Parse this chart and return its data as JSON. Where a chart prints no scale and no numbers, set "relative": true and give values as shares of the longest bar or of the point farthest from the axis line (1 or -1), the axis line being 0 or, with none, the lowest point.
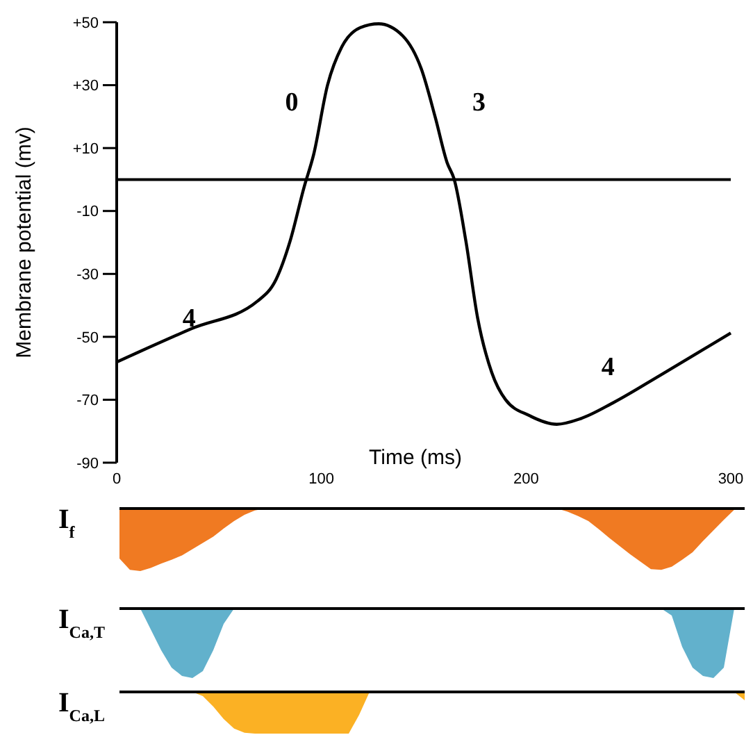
{
  "chart_data": [
    {
      "type": "line",
      "xlabel": "Time (ms)",
      "ylabel": "Membrane potential (mv)",
      "xlim": [
        0,
        300
      ],
      "xticks": [
        0,
        100,
        200,
        300
      ],
      "ylim": [
        -90,
        50
      ],
      "yticks": [
        {
          "value": 50,
          "label": "+50"
        },
        {
          "value": 30,
          "label": "+30"
        },
        {
          "value": 10,
          "label": "+10"
        },
        -10,
        -30,
        -50,
        -70,
        -90
      ],
      "series": [
        {
          "color": "#000000",
          "x": [
            0,
            36.6,
            68.7,
            77.9,
            84.7,
            91.6,
            96.2,
            103,
            110,
            119,
            128,
            139.7,
            148.8,
            155.7,
            161.4,
            164.9,
            170.6,
            176.3,
            183.2,
            190,
            201.5,
            215,
            226.7,
            242.7,
            265.6,
            300
          ],
          "values": [
            -58,
            -47.4,
            -38.7,
            -31.7,
            -19.6,
            -2.3,
            7.9,
            30,
            42.2,
            48.3,
            49.5,
            45.7,
            35.2,
            19.6,
            5.4,
            0,
            -19.6,
            -43.9,
            -61.3,
            -70,
            -75,
            -77.8,
            -76,
            -70.9,
            -62.2,
            -48.8
          ]
        }
      ],
      "ref_lines": [
        {
          "axis": "y",
          "value": 0,
          "color": "#000000"
        }
      ],
      "annotations": [
        "0",
        "3",
        "4",
        "4"
      ]
    },
    {
      "type": "area",
      "title": "I$_{f}$",
      "relative": true,
      "categories": [
        null,
        null,
        null,
        null,
        null,
        null,
        null,
        null,
        null,
        null,
        null,
        null,
        null,
        null,
        null,
        null,
        null,
        null,
        null,
        null,
        null,
        null,
        null,
        null,
        null,
        null,
        null,
        null,
        null,
        null,
        null,
        null,
        null,
        null,
        null,
        null,
        null,
        null,
        null,
        null,
        null,
        null,
        null,
        null,
        null,
        null,
        null,
        null,
        null,
        null,
        null,
        null,
        null,
        null,
        null,
        null,
        null,
        null,
        null,
        null,
        null
      ],
      "series": [
        {
          "color": "#f07a22",
          "values": [
            -0.8,
            -0.98,
            -1,
            -0.95,
            -0.88,
            -0.82,
            -0.75,
            -0.65,
            -0.55,
            -0.45,
            -0.32,
            -0.2,
            -0.1,
            -0.03,
            0,
            0,
            0,
            0,
            0,
            0,
            0,
            0,
            0,
            0,
            0,
            0,
            0,
            0,
            0,
            0,
            0,
            0,
            0,
            0,
            0,
            0,
            0,
            0,
            0,
            0,
            0,
            0,
            0,
            -0.05,
            -0.12,
            -0.2,
            -0.33,
            -0.47,
            -0.6,
            -0.73,
            -0.85,
            -0.97,
            -0.98,
            -0.93,
            -0.82,
            -0.7,
            -0.52,
            -0.35,
            -0.18,
            -0.02,
            0
          ]
        }
      ]
    },
    {
      "type": "area",
      "title": "I$_{Ca,T}$",
      "relative": true,
      "categories": [
        null,
        null,
        null,
        null,
        null,
        null,
        null,
        null,
        null,
        null,
        null,
        null,
        null,
        null,
        null,
        null,
        null,
        null,
        null,
        null,
        null,
        null,
        null,
        null,
        null,
        null,
        null,
        null,
        null,
        null,
        null,
        null,
        null,
        null,
        null,
        null,
        null,
        null,
        null,
        null,
        null,
        null,
        null,
        null,
        null,
        null,
        null,
        null,
        null,
        null,
        null,
        null,
        null,
        null,
        null,
        null,
        null,
        null,
        null,
        null,
        null
      ],
      "series": [
        {
          "color": "#62b1cc",
          "values": [
            0,
            0,
            0,
            -0.3,
            -0.6,
            -0.85,
            -0.97,
            -1,
            -0.9,
            -0.6,
            -0.22,
            0,
            0,
            0,
            0,
            0,
            0,
            0,
            0,
            0,
            0,
            0,
            0,
            0,
            0,
            0,
            0,
            0,
            0,
            0,
            0,
            0,
            0,
            0,
            0,
            0,
            0,
            0,
            0,
            0,
            0,
            0,
            0,
            0,
            0,
            0,
            0,
            0,
            0,
            0,
            0,
            0,
            0,
            -0.1,
            -0.55,
            -0.85,
            -0.97,
            -1,
            -0.85,
            0,
            0
          ]
        }
      ]
    },
    {
      "type": "area",
      "title": "I$_{Ca,L}$",
      "relative": true,
      "categories": [
        null,
        null,
        null,
        null,
        null,
        null,
        null,
        null,
        null,
        null,
        null,
        null,
        null,
        null,
        null,
        null,
        null,
        null,
        null,
        null,
        null,
        null,
        null,
        null,
        null,
        null,
        null,
        null,
        null,
        null,
        null,
        null,
        null,
        null,
        null,
        null,
        null,
        null,
        null,
        null,
        null,
        null,
        null,
        null,
        null,
        null,
        null,
        null,
        null,
        null,
        null,
        null,
        null,
        null,
        null,
        null,
        null,
        null,
        null,
        null,
        null
      ],
      "series": [
        {
          "color": "#fbb124",
          "values": [
            0,
            0,
            0,
            0,
            0,
            0,
            0,
            0,
            -0.1,
            -0.35,
            -0.65,
            -0.88,
            -0.98,
            -1,
            -1,
            -1,
            -1,
            -1,
            -1,
            -1,
            -1,
            -1,
            -1,
            -0.55,
            0,
            0,
            0,
            0,
            0,
            0,
            0,
            0,
            0,
            0,
            0,
            0,
            0,
            0,
            0,
            0,
            0,
            0,
            0,
            0,
            0,
            0,
            0,
            0,
            0,
            0,
            0,
            0,
            0,
            0,
            0,
            0,
            0,
            0,
            0,
            0,
            -0.2
          ]
        }
      ]
    }
  ]
}
